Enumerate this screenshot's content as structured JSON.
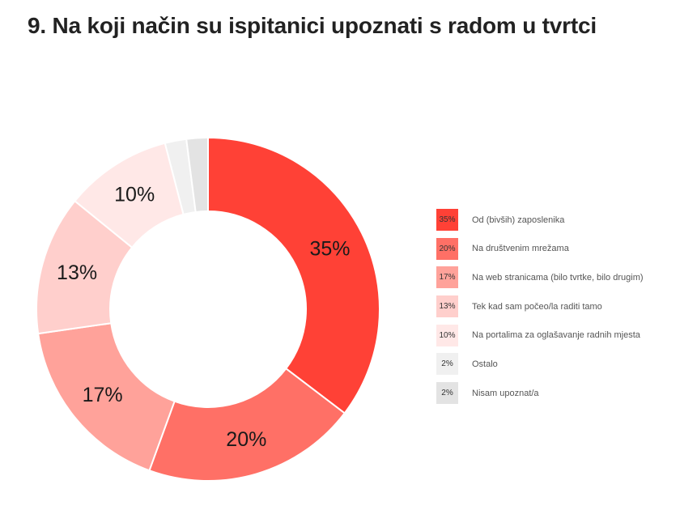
{
  "title": "9. Na koji način su ispitanici upoznati s radom u tvrtci",
  "chart_data": {
    "type": "pie",
    "donut": true,
    "title": "9. Na koji način su ispitanici upoznati s radom u tvrtci",
    "legend_position": "right",
    "slices": [
      {
        "label": "Od (bivših) zaposlenika",
        "value": 35,
        "display": "35%",
        "color": "#ff4136"
      },
      {
        "label": "Na društvenim mrežama",
        "value": 20,
        "display": "20%",
        "color": "#ff7066"
      },
      {
        "label": "Na web stranicama (bilo tvrtke, bilo drugim)",
        "value": 17,
        "display": "17%",
        "color": "#ffa29a"
      },
      {
        "label": "Tek kad sam počeo/la raditi tamo",
        "value": 13,
        "display": "13%",
        "color": "#ffcfcc"
      },
      {
        "label": "Na portalima za oglašavanje radnih mjesta",
        "value": 10,
        "display": "10%",
        "color": "#ffe8e7"
      },
      {
        "label": "Ostalo",
        "value": 2,
        "display": "2%",
        "color": "#f0f0f0"
      },
      {
        "label": "Nisam upoznat/a",
        "value": 2,
        "display": "2%",
        "color": "#e3e3e3"
      }
    ]
  }
}
